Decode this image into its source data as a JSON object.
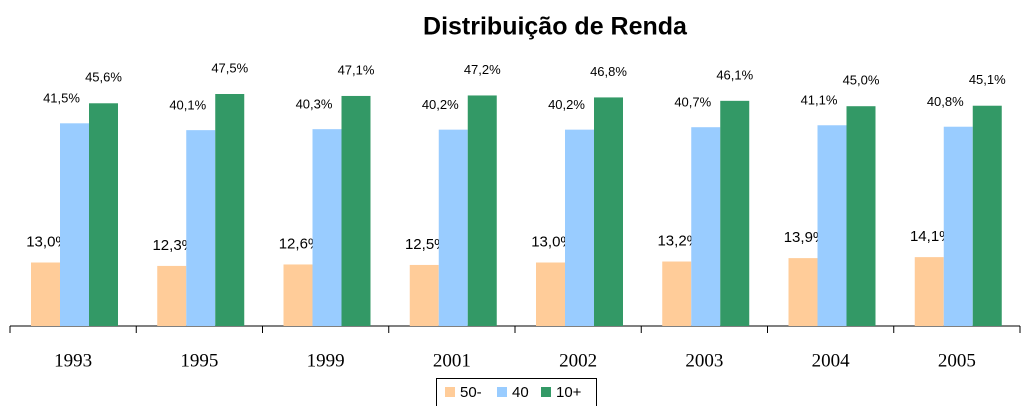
{
  "chart_data": {
    "type": "bar",
    "title": "Distribuição de Renda",
    "categories": [
      "1993",
      "1995",
      "1999",
      "2001",
      "2002",
      "2003",
      "2004",
      "2005"
    ],
    "series": [
      {
        "name": "50-",
        "color": "#ffcc99",
        "values": [
          13.0,
          12.3,
          12.6,
          12.5,
          13.0,
          13.2,
          13.9,
          14.1
        ],
        "value_labels": [
          "13,0%",
          "12,3%",
          "12,6%",
          "12,5%",
          "13,0%",
          "13,2%",
          "13,9%",
          "14,1%"
        ]
      },
      {
        "name": "40",
        "color": "#99ccff",
        "values": [
          41.5,
          40.1,
          40.3,
          40.2,
          40.2,
          40.7,
          41.1,
          40.8
        ],
        "value_labels": [
          "41,5%",
          "40,1%",
          "40,3%",
          "40,2%",
          "40,2%",
          "40,7%",
          "41,1%",
          "40,8%"
        ]
      },
      {
        "name": "10+",
        "color": "#339966",
        "values": [
          45.6,
          47.5,
          47.1,
          47.2,
          46.8,
          46.1,
          45.0,
          45.1
        ],
        "value_labels": [
          "45,6%",
          "47,5%",
          "47,1%",
          "47,2%",
          "46,8%",
          "46,1%",
          "45,0%",
          "45,1%"
        ]
      }
    ]
  }
}
